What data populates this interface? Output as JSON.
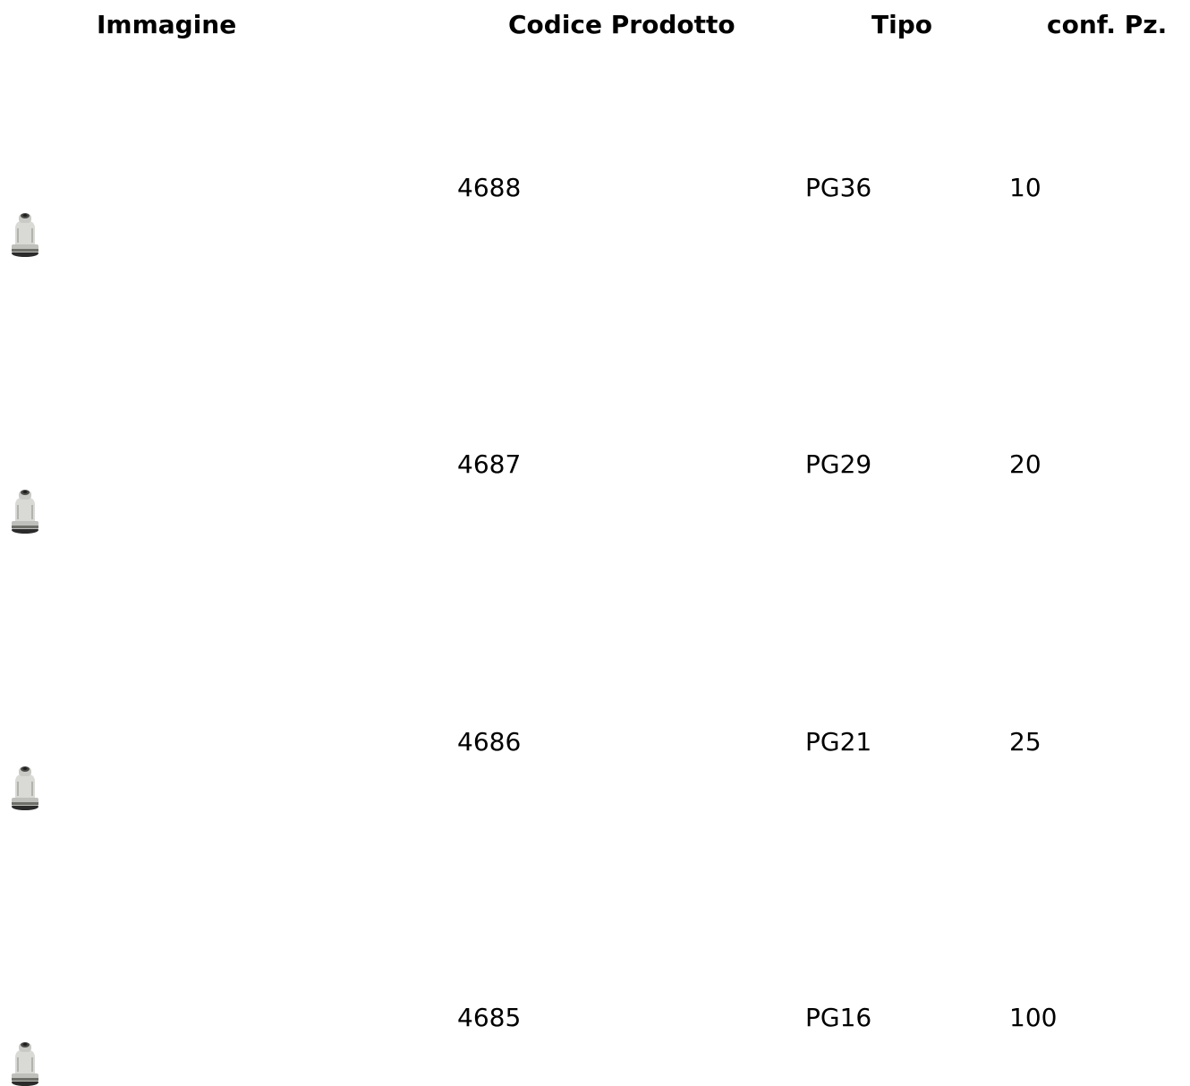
{
  "table": {
    "headers": {
      "image": "Immagine",
      "code": "Codice Prodotto",
      "type": "Tipo",
      "conf": "conf. Pz."
    },
    "rows": [
      {
        "code": "4688",
        "type": "PG36",
        "conf": "10",
        "image_icon": "cable-gland-icon"
      },
      {
        "code": "4687",
        "type": "PG29",
        "conf": "20",
        "image_icon": "cable-gland-icon"
      },
      {
        "code": "4686",
        "type": "PG21",
        "conf": "25",
        "image_icon": "cable-gland-icon"
      },
      {
        "code": "4685",
        "type": "PG16",
        "conf": "100",
        "image_icon": "cable-gland-icon"
      }
    ]
  }
}
